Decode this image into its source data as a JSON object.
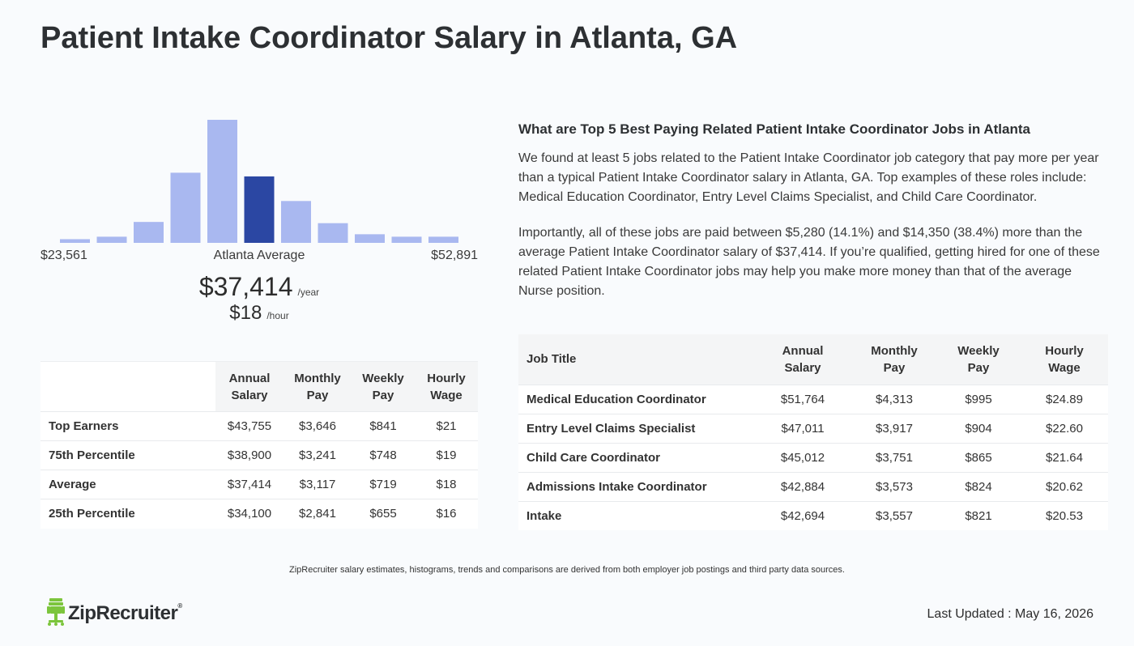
{
  "title": "Patient Intake Coordinator Salary in Atlanta, GA",
  "histogram": {
    "min_label": "$23,561",
    "avg_label": "Atlanta Average",
    "max_label": "$52,891",
    "bar_heights": [
      0.03,
      0.05,
      0.17,
      0.57,
      1.0,
      0.54,
      0.34,
      0.16,
      0.07,
      0.05,
      0.05
    ],
    "highlight_index": 5,
    "bar_color": "#a9b8f0",
    "highlight_color": "#2b47a3"
  },
  "average": {
    "yearly": "$37,414",
    "yearly_unit": "/year",
    "hourly": "$18",
    "hourly_unit": "/hour"
  },
  "percentile_table": {
    "headers": [
      "",
      "Annual Salary",
      "Monthly Pay",
      "Weekly Pay",
      "Hourly Wage"
    ],
    "rows": [
      [
        "Top Earners",
        "$43,755",
        "$3,646",
        "$841",
        "$21"
      ],
      [
        "75th Percentile",
        "$38,900",
        "$3,241",
        "$748",
        "$19"
      ],
      [
        "Average",
        "$37,414",
        "$3,117",
        "$719",
        "$18"
      ],
      [
        "25th Percentile",
        "$34,100",
        "$2,841",
        "$655",
        "$16"
      ]
    ]
  },
  "related": {
    "heading": "What are Top 5 Best Paying Related Patient Intake Coordinator Jobs in Atlanta",
    "paragraph1": "We found at least 5 jobs related to the Patient Intake Coordinator job category that pay more per year than a typical Patient Intake Coordinator salary in Atlanta, GA. Top examples of these roles include: Medical Education Coordinator, Entry Level Claims Specialist, and Child Care Coordinator.",
    "paragraph2": "Importantly, all of these jobs are paid between $5,280 (14.1%) and $14,350 (38.4%) more than the average Patient Intake Coordinator salary of $37,414. If you’re qualified, getting hired for one of these related Patient Intake Coordinator jobs may help you make more money than that of the average Nurse position."
  },
  "job_table": {
    "headers": [
      "Job Title",
      "Annual Salary",
      "Monthly Pay",
      "Weekly Pay",
      "Hourly Wage"
    ],
    "rows": [
      [
        "Medical Education Coordinator",
        "$51,764",
        "$4,313",
        "$995",
        "$24.89"
      ],
      [
        "Entry Level Claims Specialist",
        "$47,011",
        "$3,917",
        "$904",
        "$22.60"
      ],
      [
        "Child Care Coordinator",
        "$45,012",
        "$3,751",
        "$865",
        "$21.64"
      ],
      [
        "Admissions Intake Coordinator",
        "$42,884",
        "$3,573",
        "$824",
        "$20.62"
      ],
      [
        "Intake",
        "$42,694",
        "$3,557",
        "$821",
        "$20.53"
      ]
    ]
  },
  "disclaimer": "ZipRecruiter salary estimates, histograms, trends and comparisons are derived from both employer job postings and third party data sources.",
  "footer": {
    "logo_text": "ZipRecruiter",
    "logo_reg": "®",
    "logo_icon": "chair-icon",
    "logo_color": "#7cc53c",
    "last_updated": "Last Updated : May 16, 2026"
  }
}
